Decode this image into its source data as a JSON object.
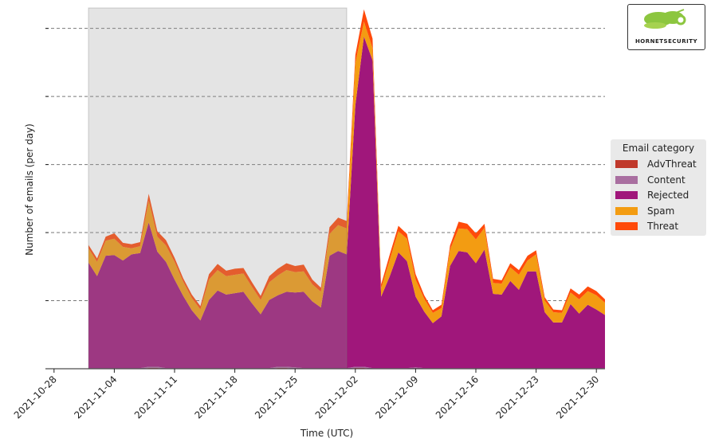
{
  "chart_data": {
    "type": "area",
    "stacked": true,
    "xlabel": "Time (UTC)",
    "ylabel": "Number of emails (per day)",
    "x_tick_labels": [
      "2021-10-28",
      "2021-11-04",
      "2021-11-11",
      "2021-11-18",
      "2021-11-25",
      "2021-12-02",
      "2021-12-09",
      "2021-12-16",
      "2021-12-23",
      "2021-12-30"
    ],
    "xlim": [
      "2021-10-27",
      "2021-12-31"
    ],
    "ylim": [
      0,
      5.3
    ],
    "y_gridlines": [
      1,
      2,
      3,
      4,
      5
    ],
    "y_tick_labels_shown": false,
    "grid": "horizontal dashed",
    "highlight_span": {
      "start": "2021-11-01",
      "end": "2021-12-01"
    },
    "legend": {
      "title": "Email category",
      "placement": "right"
    },
    "x": [
      "2021-11-01",
      "2021-11-02",
      "2021-11-03",
      "2021-11-04",
      "2021-11-05",
      "2021-11-06",
      "2021-11-07",
      "2021-11-08",
      "2021-11-09",
      "2021-11-10",
      "2021-11-11",
      "2021-11-12",
      "2021-11-13",
      "2021-11-14",
      "2021-11-15",
      "2021-11-16",
      "2021-11-17",
      "2021-11-18",
      "2021-11-19",
      "2021-11-20",
      "2021-11-21",
      "2021-11-22",
      "2021-11-23",
      "2021-11-24",
      "2021-11-25",
      "2021-11-26",
      "2021-11-27",
      "2021-11-28",
      "2021-11-29",
      "2021-11-30",
      "2021-12-01",
      "2021-12-02",
      "2021-12-03",
      "2021-12-04",
      "2021-12-05",
      "2021-12-06",
      "2021-12-07",
      "2021-12-08",
      "2021-12-09",
      "2021-12-10",
      "2021-12-11",
      "2021-12-12",
      "2021-12-13",
      "2021-12-14",
      "2021-12-15",
      "2021-12-16",
      "2021-12-17",
      "2021-12-18",
      "2021-12-19",
      "2021-12-20",
      "2021-12-21",
      "2021-12-22",
      "2021-12-23",
      "2021-12-24",
      "2021-12-25",
      "2021-12-26",
      "2021-12-27",
      "2021-12-28",
      "2021-12-29",
      "2021-12-30",
      "2021-12-31"
    ],
    "series": [
      {
        "name": "AdvThreat",
        "color": "#c0392b",
        "values": [
          0,
          0,
          0,
          0,
          0,
          0,
          0,
          0.01,
          0.01,
          0,
          0,
          0,
          0,
          0,
          0,
          0,
          0,
          0,
          0,
          0,
          0,
          0,
          0.01,
          0.01,
          0,
          0,
          0,
          0,
          0,
          0,
          0,
          0.01,
          0.01,
          0,
          0,
          0,
          0,
          0,
          0,
          0,
          0,
          0,
          0,
          0,
          0,
          0,
          0,
          0,
          0,
          0,
          0,
          0,
          0,
          0,
          0,
          0,
          0,
          0,
          0,
          0,
          0
        ]
      },
      {
        "name": "Content",
        "color": "#a96fa0",
        "values": [
          0.01,
          0.01,
          0.01,
          0.01,
          0.01,
          0.01,
          0.01,
          0.02,
          0.02,
          0.01,
          0.01,
          0.01,
          0.01,
          0.01,
          0.01,
          0.01,
          0.01,
          0.01,
          0.01,
          0.01,
          0.01,
          0.01,
          0.02,
          0.02,
          0.02,
          0.01,
          0.01,
          0.01,
          0.01,
          0.01,
          0.01,
          0.02,
          0.02,
          0.01,
          0.01,
          0.01,
          0.01,
          0.01,
          0.02,
          0.01,
          0.01,
          0.01,
          0.01,
          0.01,
          0.01,
          0.01,
          0.01,
          0.01,
          0.01,
          0.01,
          0.01,
          0.01,
          0.01,
          0.01,
          0.01,
          0.01,
          0.01,
          0.01,
          0.01,
          0.01,
          0.01
        ]
      },
      {
        "name": "Rejected",
        "color": "#a0177b",
        "values": [
          1.55,
          1.35,
          1.65,
          1.66,
          1.58,
          1.67,
          1.69,
          2.12,
          1.69,
          1.56,
          1.3,
          1.06,
          0.85,
          0.7,
          1.0,
          1.14,
          1.08,
          1.1,
          1.12,
          0.95,
          0.79,
          1.0,
          1.05,
          1.1,
          1.1,
          1.12,
          0.98,
          0.89,
          1.65,
          1.72,
          1.67,
          3.84,
          4.85,
          4.52,
          1.05,
          1.35,
          1.7,
          1.57,
          1.04,
          0.83,
          0.66,
          0.76,
          1.5,
          1.72,
          1.7,
          1.54,
          1.74,
          1.09,
          1.08,
          1.28,
          1.15,
          1.42,
          1.42,
          0.82,
          0.67,
          0.67,
          0.94,
          0.8,
          0.93,
          0.86,
          0.78
        ]
      },
      {
        "name": "Spam",
        "color": "#f39c12",
        "values": [
          0.21,
          0.21,
          0.22,
          0.24,
          0.2,
          0.09,
          0.1,
          0.32,
          0.22,
          0.24,
          0.26,
          0.21,
          0.18,
          0.16,
          0.3,
          0.3,
          0.27,
          0.27,
          0.27,
          0.24,
          0.21,
          0.26,
          0.29,
          0.32,
          0.3,
          0.3,
          0.25,
          0.23,
          0.32,
          0.38,
          0.38,
          0.62,
          0.22,
          0.18,
          0.12,
          0.24,
          0.31,
          0.33,
          0.25,
          0.19,
          0.15,
          0.12,
          0.24,
          0.33,
          0.34,
          0.35,
          0.32,
          0.16,
          0.16,
          0.2,
          0.22,
          0.16,
          0.25,
          0.17,
          0.15,
          0.14,
          0.17,
          0.21,
          0.2,
          0.21,
          0.18
        ]
      },
      {
        "name": "Threat",
        "color": "#ff4a0a",
        "values": [
          0.05,
          0.05,
          0.06,
          0.08,
          0.06,
          0.06,
          0.06,
          0.1,
          0.08,
          0.08,
          0.06,
          0.05,
          0.05,
          0.05,
          0.08,
          0.09,
          0.08,
          0.09,
          0.08,
          0.07,
          0.06,
          0.09,
          0.1,
          0.1,
          0.09,
          0.1,
          0.07,
          0.06,
          0.1,
          0.11,
          0.11,
          0.12,
          0.18,
          0.14,
          0.06,
          0.08,
          0.08,
          0.07,
          0.08,
          0.05,
          0.04,
          0.05,
          0.06,
          0.1,
          0.08,
          0.09,
          0.06,
          0.06,
          0.05,
          0.06,
          0.07,
          0.07,
          0.06,
          0.05,
          0.04,
          0.04,
          0.06,
          0.07,
          0.07,
          0.06,
          0.05
        ]
      }
    ]
  },
  "logo": {
    "text": "HORNETSECURITY"
  }
}
